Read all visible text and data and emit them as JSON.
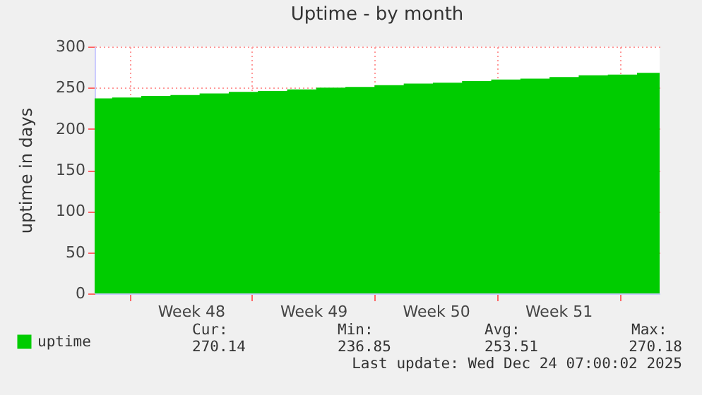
{
  "chart_data": {
    "type": "area",
    "title": "Uptime - by month",
    "ylabel": "uptime in days",
    "x": [
      "--11-22T00:00",
      "--11-23T00:00",
      "--11-24T16:00",
      "--11-26T08:00",
      "--11-28T00:00",
      "--11-29T16:00",
      "--12-01T08:00",
      "--12-03T00:00",
      "--12-04T16:00",
      "--12-06T08:00",
      "--12-08T00:00",
      "--12-09T16:00",
      "--12-11T08:00",
      "--12-13T00:00",
      "--12-14T16:00",
      "--12-16T08:00",
      "--12-18T00:00",
      "--12-19T16:00",
      "--12-21T08:00",
      "--12-23T00:00",
      "--12-24T07:00"
    ],
    "series": [
      {
        "name": "uptime",
        "color": "#00cc00",
        "values": [
          237,
          238,
          240,
          241,
          243,
          245,
          246,
          248,
          250,
          251,
          253,
          255,
          256,
          258,
          260,
          261,
          263,
          265,
          266,
          268,
          270
        ]
      }
    ],
    "xlim": [
      "--11-22T00:00",
      "--12-24T07:00"
    ],
    "xticks": [
      {
        "value": "--11-24T00:00",
        "label": null
      },
      {
        "value": "--11-27T12:00",
        "label": "Week 48"
      },
      {
        "value": "--12-01T00:00",
        "label": null
      },
      {
        "value": "--12-04T12:00",
        "label": "Week 49"
      },
      {
        "value": "--12-08T00:00",
        "label": null
      },
      {
        "value": "--12-11T12:00",
        "label": "Week 50"
      },
      {
        "value": "--12-15T00:00",
        "label": null
      },
      {
        "value": "--12-18T12:00",
        "label": "Week 51"
      },
      {
        "value": "--12-22T00:00",
        "label": null
      }
    ],
    "ylim": [
      0,
      300
    ],
    "yticks": [
      0,
      50,
      100,
      150,
      200,
      250,
      300
    ],
    "grid": true,
    "legend": "bottom left",
    "annotations": [
      "Cur:",
      "Min:",
      "Avg:",
      "Max:",
      "270.14",
      "236.85",
      "253.51",
      "270.18",
      "Last update: Wed Dec 24 07:00:02 2025"
    ]
  }
}
